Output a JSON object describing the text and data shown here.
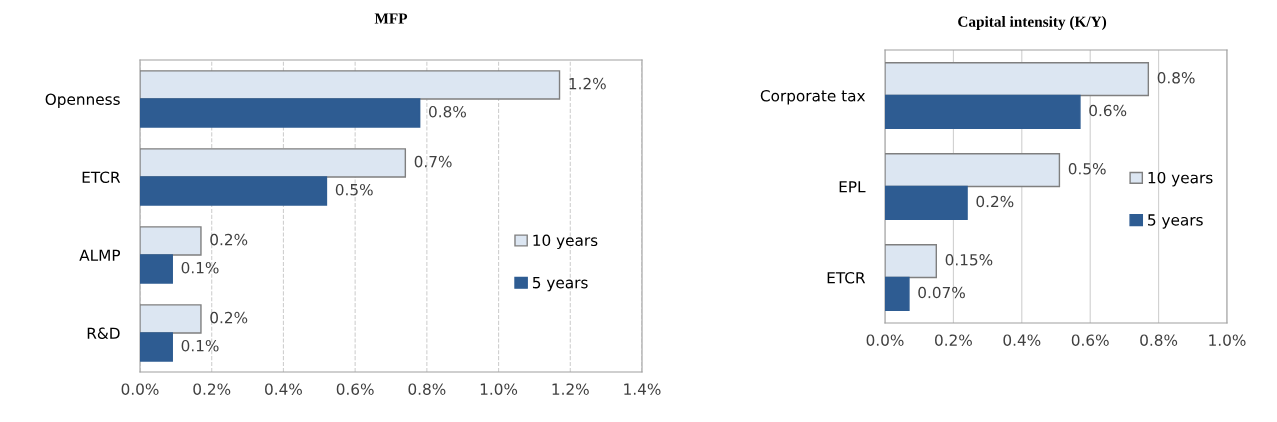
{
  "chart_data": [
    {
      "type": "bar",
      "orientation": "horizontal",
      "title": "MFP",
      "categories": [
        "Openness",
        "ETCR",
        "ALMP",
        "R&D"
      ],
      "series": [
        {
          "name": "10 years",
          "color": "#dce6f2",
          "values": [
            1.17,
            0.74,
            0.17,
            0.17
          ],
          "value_labels": [
            "1.2%",
            "0.7%",
            "0.2%",
            "0.2%"
          ]
        },
        {
          "name": "5 years",
          "color": "#2e5c92",
          "values": [
            0.78,
            0.52,
            0.09,
            0.09
          ],
          "value_labels": [
            "0.8%",
            "0.5%",
            "0.1%",
            "0.1%"
          ]
        }
      ],
      "xlim": [
        0,
        1.4
      ],
      "xticks": [
        {
          "value": 0,
          "label": "0.0%"
        },
        {
          "value": 0.2,
          "label": "0.2%"
        },
        {
          "value": 0.4,
          "label": "0.4%"
        },
        {
          "value": 0.6,
          "label": "0.6%"
        },
        {
          "value": 0.8,
          "label": "0.8%"
        },
        {
          "value": 1.0,
          "label": "1.0%"
        },
        {
          "value": 1.2,
          "label": "1.2%"
        },
        {
          "value": 1.4,
          "label": "1.4%"
        }
      ],
      "grid": "x",
      "legend": "right"
    },
    {
      "type": "bar",
      "orientation": "horizontal",
      "title": "Capital intensity (K/Y)",
      "categories": [
        "Corporate tax",
        "EPL",
        "ETCR"
      ],
      "series": [
        {
          "name": "10 years",
          "color": "#dce6f2",
          "values": [
            0.77,
            0.51,
            0.15
          ],
          "value_labels": [
            "0.8%",
            "0.5%",
            "0.15%"
          ]
        },
        {
          "name": "5 years",
          "color": "#2e5c92",
          "values": [
            0.57,
            0.24,
            0.07
          ],
          "value_labels": [
            "0.6%",
            "0.2%",
            "0.07%"
          ]
        }
      ],
      "xlim": [
        0,
        1.0
      ],
      "xticks": [
        {
          "value": 0,
          "label": "0.0%"
        },
        {
          "value": 0.2,
          "label": "0.2%"
        },
        {
          "value": 0.4,
          "label": "0.4%"
        },
        {
          "value": 0.6,
          "label": "0.6%"
        },
        {
          "value": 0.8,
          "label": "0.8%"
        },
        {
          "value": 1.0,
          "label": "1.0%"
        }
      ],
      "grid": "x",
      "legend": "right"
    }
  ]
}
